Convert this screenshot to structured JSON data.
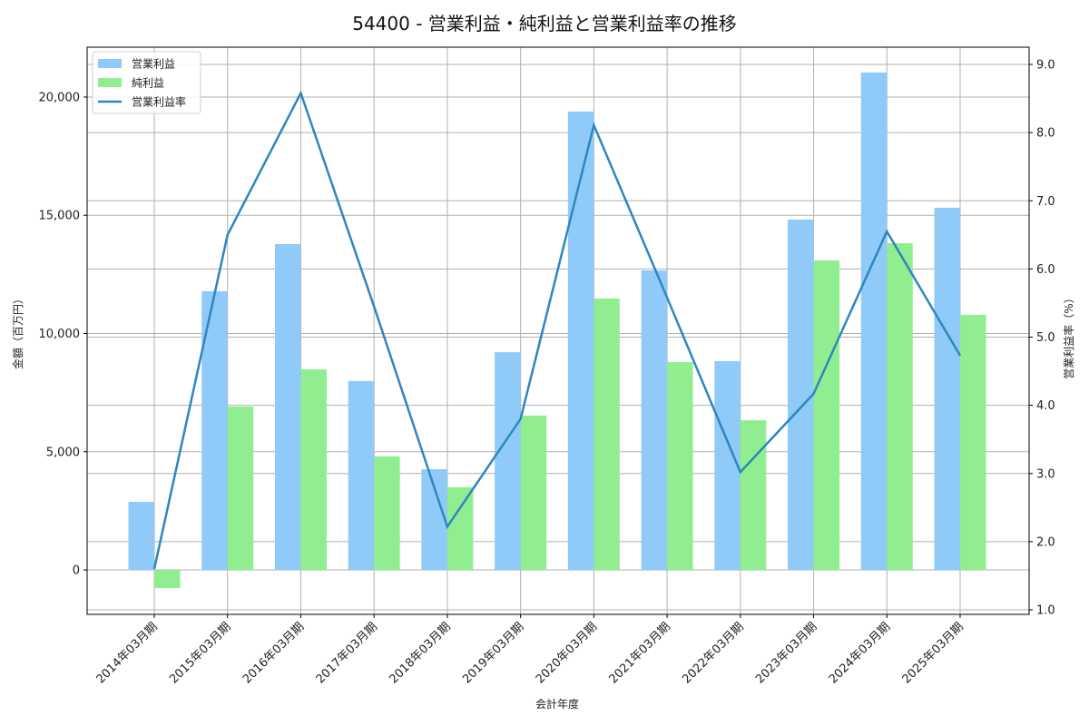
{
  "chart_data": {
    "type": "bar",
    "title": "54400 - 営業利益・純利益と営業利益率の推移",
    "xlabel": "会計年度",
    "ylabel": "金額（百万円）",
    "y2label": "営業利益率（%）",
    "ylim": [
      -1880,
      22110
    ],
    "y2lim": [
      1.0,
      9.2
    ],
    "yticks": [
      0,
      5000,
      10000,
      15000,
      20000
    ],
    "ytick_labels": [
      "0",
      "5,000",
      "10,000",
      "15,000",
      "20,000"
    ],
    "y2ticks": [
      1.0,
      2.0,
      3.0,
      4.0,
      5.0,
      6.0,
      7.0,
      8.0,
      9.0
    ],
    "y2tick_labels": [
      "1.0",
      "2.0",
      "3.0",
      "4.0",
      "5.0",
      "6.0",
      "7.0",
      "8.0",
      "9.0"
    ],
    "grid": true,
    "legend_position": "upper left",
    "categories": [
      "2014年03月期",
      "2015年03月期",
      "2016年03月期",
      "2017年03月期",
      "2018年03月期",
      "2019年03月期",
      "2020年03月期",
      "2021年03月期",
      "2022年03月期",
      "2023年03月期",
      "2024年03月期",
      "2025年03月期"
    ],
    "series": [
      {
        "name": "営業利益",
        "type": "bar",
        "axis": "left",
        "color": "#90caf9",
        "values": [
          2880,
          11790,
          13780,
          7990,
          4260,
          9210,
          19390,
          12670,
          8830,
          14820,
          21040,
          15320
        ]
      },
      {
        "name": "純利益",
        "type": "bar",
        "axis": "left",
        "color": "#90ee90",
        "values": [
          -770,
          6910,
          8480,
          4800,
          3500,
          6530,
          11480,
          8790,
          6330,
          13090,
          13820,
          10790
        ]
      },
      {
        "name": "営業利益率",
        "type": "line",
        "axis": "right",
        "color": "#2e86c1",
        "values": [
          1.6,
          6.5,
          8.58,
          5.45,
          2.22,
          3.8,
          8.11,
          5.58,
          3.02,
          4.17,
          6.55,
          4.73
        ]
      }
    ]
  },
  "legend": {
    "items": [
      {
        "label": "営業利益",
        "kind": "patch",
        "color": "#90caf9"
      },
      {
        "label": "純利益",
        "kind": "patch",
        "color": "#90ee90"
      },
      {
        "label": "営業利益率",
        "kind": "line",
        "color": "#2e86c1"
      }
    ]
  },
  "colors": {
    "grid": "#b0b0b0",
    "axis": "#000000"
  }
}
